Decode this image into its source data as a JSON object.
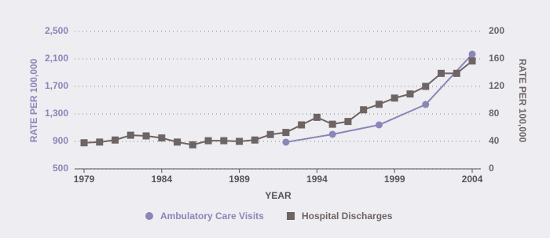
{
  "chart_data": {
    "type": "line",
    "xlabel": "YEAR",
    "ylabel": "RATE PER 100,000",
    "y2label": "RATE PER 100,000",
    "xlim": [
      1979,
      2004
    ],
    "xticks": [
      1979,
      1984,
      1989,
      1994,
      1999,
      2004
    ],
    "ylim": [
      500,
      2500
    ],
    "yticks": [
      500,
      900,
      {
        "value": 1300,
        "label": "1,300"
      },
      {
        "value": 1700,
        "label": "1,700"
      },
      {
        "value": 2100,
        "label": "2,100"
      },
      {
        "value": 2500,
        "label": "2,500"
      }
    ],
    "y2lim": [
      0,
      200
    ],
    "y2ticks": [
      0,
      40,
      80,
      120,
      160,
      200
    ],
    "grid": true,
    "legend": "bottom",
    "series": [
      {
        "name": "Ambulatory Care Visits",
        "color": "#8a86b8",
        "marker": "circle",
        "axis": "y",
        "x": [
          1992,
          1995,
          1998,
          2001,
          2004
        ],
        "values": [
          889,
          1003,
          1140,
          1437,
          2169
        ]
      },
      {
        "name": "Hospital Discharges",
        "color": "#6e6463",
        "marker": "square",
        "axis": "y2",
        "x": [
          1979,
          1980,
          1981,
          1982,
          1983,
          1984,
          1985,
          1986,
          1987,
          1988,
          1989,
          1990,
          1991,
          1992,
          1993,
          1994,
          1995,
          1996,
          1997,
          1998,
          1999,
          2000,
          2001,
          2002,
          2003,
          2004
        ],
        "values": [
          38,
          39,
          42,
          49,
          48,
          45,
          39,
          35,
          41,
          41,
          40,
          42,
          50,
          53,
          64,
          75,
          65,
          69,
          86,
          94,
          103,
          109,
          120,
          139,
          139,
          157
        ]
      }
    ]
  }
}
